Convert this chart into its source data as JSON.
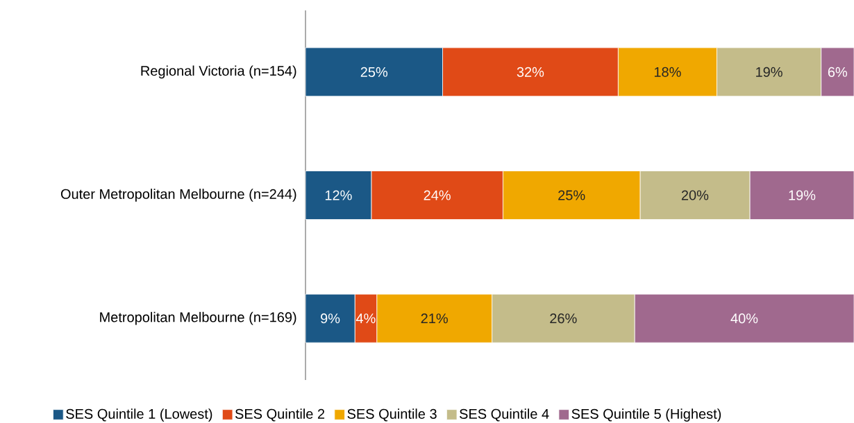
{
  "chart_data": {
    "type": "bar",
    "orientation": "horizontal",
    "stacked": true,
    "categories": [
      "Regional Victoria (n=154)",
      "Outer Metropolitan Melbourne (n=244)",
      "Metropolitan Melbourne (n=169)"
    ],
    "tick_labels": "y",
    "legend": "bottom",
    "series": [
      {
        "name": "SES Quintile 1 (Lowest)",
        "color": "#1b5886",
        "values": [
          25,
          12,
          9
        ],
        "value_labels": [
          "25%",
          "12%",
          "9%"
        ]
      },
      {
        "name": "SES Quintile 2",
        "color": "#e04a17",
        "values": [
          32,
          24,
          4
        ],
        "value_labels": [
          "32%",
          "24%",
          "4%"
        ]
      },
      {
        "name": "SES Quintile 3",
        "color": "#f0a800",
        "values": [
          18,
          25,
          21
        ],
        "value_labels": [
          "18%",
          "25%",
          "21%"
        ]
      },
      {
        "name": "SES Quintile 4",
        "color": "#c4bc8a",
        "values": [
          19,
          20,
          26
        ],
        "value_labels": [
          "19%",
          "20%",
          "26%"
        ]
      },
      {
        "name": "SES Quintile 5 (Highest)",
        "color": "#a0698e",
        "values": [
          6,
          19,
          40
        ],
        "value_labels": [
          "6%",
          "19%",
          "40%"
        ]
      }
    ]
  }
}
